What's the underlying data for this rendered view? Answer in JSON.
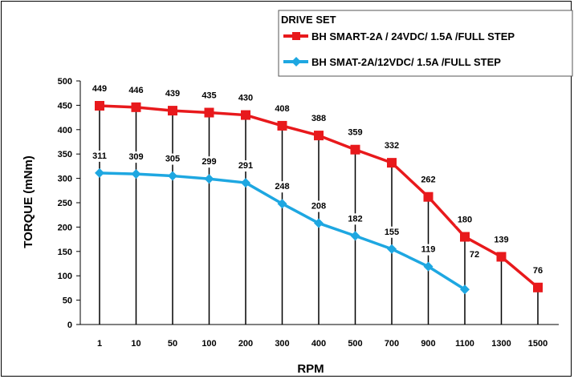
{
  "chart_data": {
    "type": "line",
    "xlabel": "RPM",
    "ylabel": "TORQUE (mNm)",
    "categories": [
      "1",
      "10",
      "50",
      "100",
      "200",
      "300",
      "400",
      "500",
      "700",
      "900",
      "1100",
      "1300",
      "1500"
    ],
    "ylim": [
      0,
      500
    ],
    "yticks": [
      0,
      50,
      100,
      150,
      200,
      250,
      300,
      350,
      400,
      450,
      500
    ],
    "legend_title": "DRIVE SET",
    "legend_position": "top-right",
    "data_labels": true,
    "series": [
      {
        "name": "BH SMART-2A / 24VDC/ 1.5A /FULL STEP",
        "color": "#e8191c",
        "marker": "square",
        "values": [
          449,
          446,
          439,
          435,
          430,
          408,
          388,
          359,
          332,
          262,
          180,
          139,
          76
        ]
      },
      {
        "name": "BH SMAT-2A/12VDC/ 1.5A /FULL STEP",
        "color": "#1ea7e1",
        "marker": "diamond",
        "values": [
          311,
          309,
          305,
          299,
          291,
          248,
          208,
          182,
          155,
          119,
          72,
          null,
          null
        ]
      }
    ]
  }
}
